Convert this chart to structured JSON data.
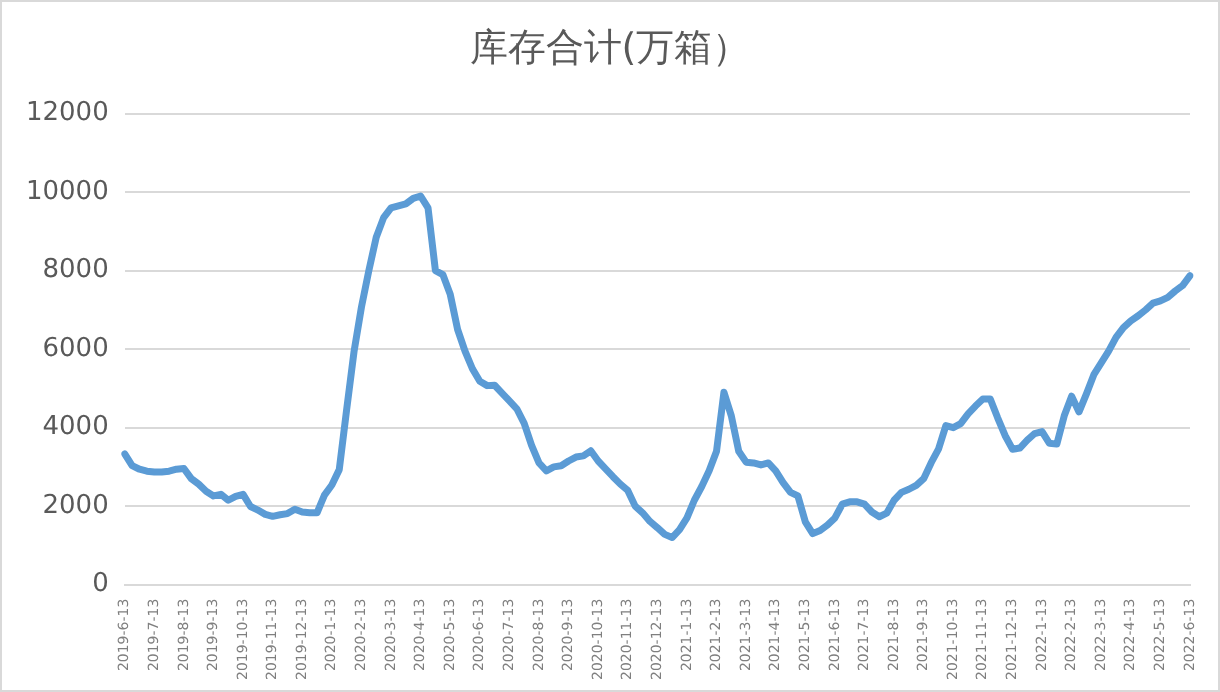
{
  "chart_data": {
    "type": "line",
    "title": "库存合计(万箱）",
    "categories": [
      "2019-6-13",
      null,
      null,
      null,
      "2019-7-13",
      null,
      null,
      null,
      "2019-8-13",
      null,
      null,
      null,
      "2019-9-13",
      null,
      null,
      null,
      "2019-10-13",
      null,
      null,
      null,
      "2019-11-13",
      null,
      null,
      null,
      "2019-12-13",
      null,
      null,
      null,
      "2020-1-13",
      null,
      null,
      null,
      "2020-2-13",
      null,
      null,
      null,
      "2020-3-13",
      null,
      null,
      null,
      "2020-4-13",
      null,
      null,
      null,
      "2020-5-13",
      null,
      null,
      null,
      "2020-6-13",
      null,
      null,
      null,
      "2020-7-13",
      null,
      null,
      null,
      "2020-8-13",
      null,
      null,
      null,
      "2020-9-13",
      null,
      null,
      null,
      "2020-10-13",
      null,
      null,
      null,
      "2020-11-13",
      null,
      null,
      null,
      "2020-12-13",
      null,
      null,
      null,
      "2021-1-13",
      null,
      null,
      null,
      "2021-2-13",
      null,
      null,
      null,
      "2021-3-13",
      null,
      null,
      null,
      "2021-4-13",
      null,
      null,
      null,
      "2021-5-13",
      null,
      null,
      null,
      "2021-6-13",
      null,
      null,
      null,
      "2021-7-13",
      null,
      null,
      null,
      "2021-8-13",
      null,
      null,
      null,
      "2021-9-13",
      null,
      null,
      null,
      "2021-10-13",
      null,
      null,
      null,
      "2021-11-13",
      null,
      null,
      null,
      "2021-12-13",
      null,
      null,
      null,
      "2022-1-13",
      null,
      null,
      null,
      "2022-2-13",
      null,
      null,
      null,
      "2022-3-13",
      null,
      null,
      null,
      "2022-4-13",
      null,
      null,
      null,
      "2022-5-13",
      null,
      null,
      null,
      "2022-6-13"
    ],
    "series": [
      {
        "color": "#5b9bd5",
        "values": [
          3330,
          3030,
          2940,
          2890,
          2870,
          2870,
          2890,
          2940,
          2960,
          2700,
          2560,
          2380,
          2260,
          2300,
          2150,
          2250,
          2300,
          1990,
          1900,
          1790,
          1740,
          1780,
          1810,
          1920,
          1850,
          1830,
          1830,
          2280,
          2540,
          2930,
          4460,
          5940,
          7070,
          8000,
          8850,
          9350,
          9600,
          9650,
          9700,
          9840,
          9900,
          9600,
          8000,
          7900,
          7400,
          6500,
          5950,
          5500,
          5180,
          5070,
          5080,
          4880,
          4680,
          4480,
          4110,
          3550,
          3100,
          2900,
          3000,
          3030,
          3150,
          3250,
          3280,
          3410,
          3150,
          2950,
          2750,
          2560,
          2400,
          2000,
          1830,
          1610,
          1450,
          1280,
          1200,
          1400,
          1700,
          2150,
          2500,
          2900,
          3400,
          4900,
          4300,
          3400,
          3120,
          3100,
          3050,
          3100,
          2900,
          2600,
          2350,
          2260,
          1600,
          1300,
          1380,
          1520,
          1700,
          2050,
          2110,
          2110,
          2050,
          1850,
          1730,
          1820,
          2150,
          2350,
          2430,
          2530,
          2700,
          3100,
          3450,
          4050,
          4000,
          4100,
          4350,
          4550,
          4730,
          4730,
          4250,
          3800,
          3450,
          3480,
          3680,
          3850,
          3900,
          3600,
          3580,
          4300,
          4800,
          4400,
          4860,
          5350,
          5650,
          5950,
          6300,
          6550,
          6720,
          6850,
          7000,
          7170,
          7230,
          7320,
          7480,
          7620,
          7870
        ]
      }
    ],
    "ylim": [
      0,
      12000
    ],
    "yticks": [
      0,
      2000,
      4000,
      6000,
      8000,
      10000,
      12000
    ],
    "grid": "y",
    "legend": false,
    "marker": "none",
    "line_style": "solid"
  }
}
